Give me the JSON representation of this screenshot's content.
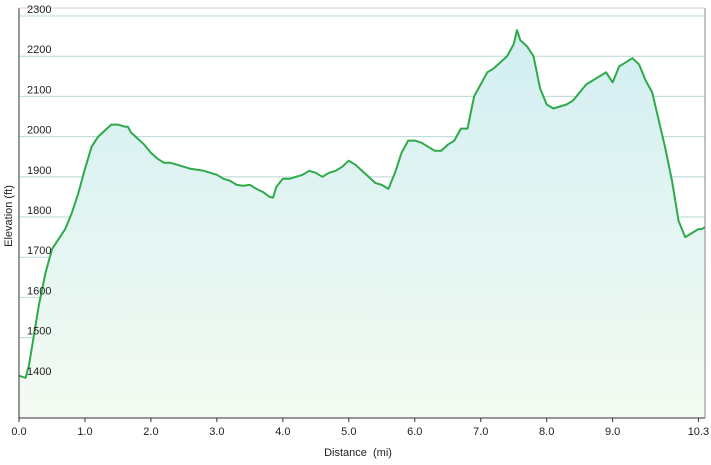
{
  "chart_data": {
    "type": "area",
    "xlabel": "Distance  (mi)",
    "ylabel": "Elevation (ft)",
    "xlim": [
      0,
      10.4
    ],
    "ylim": [
      1300,
      2320
    ],
    "xticks": [
      {
        "value": 0,
        "label": "0.0"
      },
      {
        "value": 1,
        "label": "1.0"
      },
      {
        "value": 2,
        "label": "2.0"
      },
      {
        "value": 3,
        "label": "3.0"
      },
      {
        "value": 4,
        "label": "4.0"
      },
      {
        "value": 5,
        "label": "5.0"
      },
      {
        "value": 6,
        "label": "6.0"
      },
      {
        "value": 7,
        "label": "7.0"
      },
      {
        "value": 8,
        "label": "8.0"
      },
      {
        "value": 9,
        "label": "9.0"
      },
      {
        "value": 10.3,
        "label": "10.3"
      }
    ],
    "yticks": [
      1400,
      1500,
      1600,
      1700,
      1800,
      1900,
      2000,
      2100,
      2200,
      2300
    ],
    "grid": true,
    "colors": {
      "line": "#2eaa4a",
      "fill_top": "#d6f0f2",
      "fill_bottom": "#f3fbf3",
      "grid": "#b8d8d8"
    },
    "x": [
      0,
      0.1,
      0.15,
      0.2,
      0.3,
      0.4,
      0.5,
      0.6,
      0.7,
      0.8,
      0.9,
      1.0,
      1.1,
      1.2,
      1.3,
      1.4,
      1.5,
      1.6,
      1.65,
      1.7,
      1.8,
      1.9,
      2.0,
      2.1,
      2.2,
      2.3,
      2.4,
      2.5,
      2.6,
      2.8,
      3.0,
      3.1,
      3.2,
      3.3,
      3.4,
      3.5,
      3.6,
      3.7,
      3.8,
      3.85,
      3.9,
      4.0,
      4.1,
      4.2,
      4.3,
      4.4,
      4.5,
      4.6,
      4.7,
      4.8,
      4.9,
      5.0,
      5.1,
      5.2,
      5.3,
      5.4,
      5.5,
      5.6,
      5.7,
      5.8,
      5.9,
      6.0,
      6.1,
      6.2,
      6.3,
      6.4,
      6.5,
      6.6,
      6.7,
      6.8,
      6.9,
      7.0,
      7.1,
      7.2,
      7.3,
      7.4,
      7.5,
      7.55,
      7.6,
      7.7,
      7.8,
      7.9,
      8.0,
      8.1,
      8.2,
      8.3,
      8.4,
      8.5,
      8.6,
      8.7,
      8.8,
      8.9,
      9.0,
      9.1,
      9.2,
      9.3,
      9.4,
      9.5,
      9.6,
      9.7,
      9.8,
      9.9,
      10.0,
      10.1,
      10.2,
      10.3,
      10.35,
      10.4
    ],
    "values": [
      1405,
      1400,
      1430,
      1480,
      1580,
      1660,
      1720,
      1745,
      1770,
      1810,
      1860,
      1920,
      1975,
      2000,
      2015,
      2030,
      2030,
      2025,
      2025,
      2010,
      1995,
      1980,
      1960,
      1945,
      1935,
      1935,
      1930,
      1925,
      1920,
      1915,
      1905,
      1895,
      1890,
      1880,
      1878,
      1880,
      1870,
      1862,
      1850,
      1848,
      1875,
      1895,
      1895,
      1900,
      1905,
      1915,
      1910,
      1900,
      1910,
      1915,
      1925,
      1940,
      1930,
      1915,
      1900,
      1885,
      1880,
      1870,
      1910,
      1960,
      1990,
      1990,
      1985,
      1975,
      1965,
      1965,
      1980,
      1990,
      2020,
      2020,
      2100,
      2130,
      2160,
      2170,
      2185,
      2200,
      2230,
      2265,
      2240,
      2225,
      2200,
      2120,
      2080,
      2070,
      2075,
      2080,
      2090,
      2110,
      2130,
      2140,
      2150,
      2160,
      2135,
      2175,
      2185,
      2195,
      2180,
      2140,
      2110,
      2040,
      1970,
      1890,
      1790,
      1750,
      1760,
      1770,
      1770,
      1775
    ]
  }
}
